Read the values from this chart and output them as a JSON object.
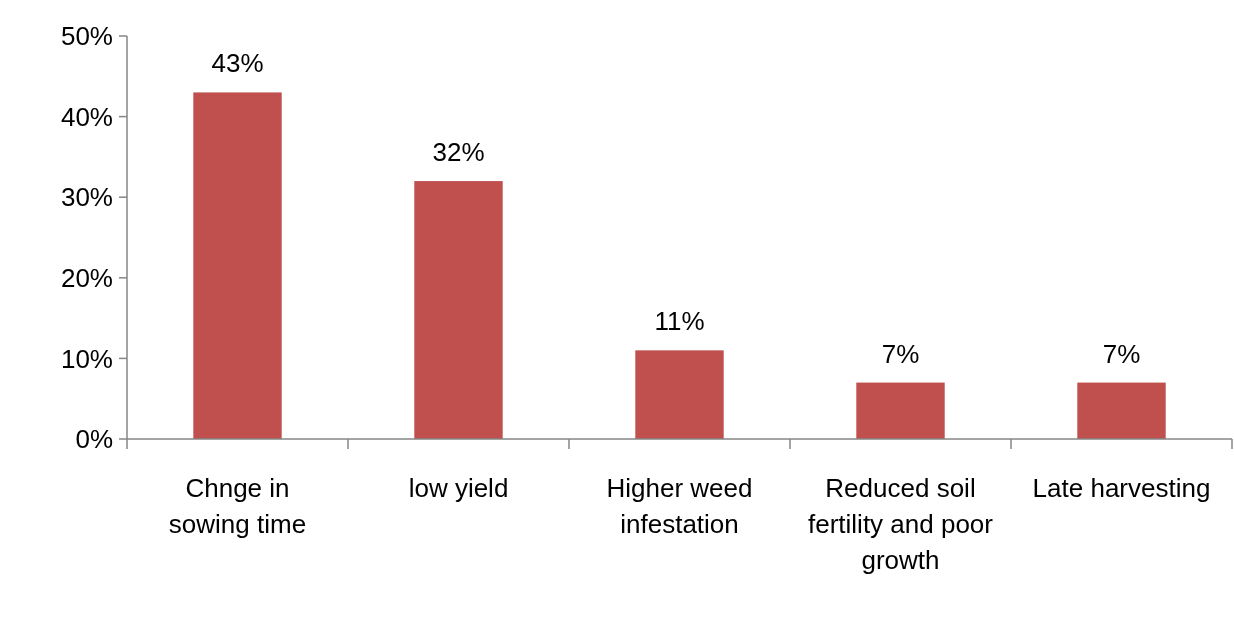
{
  "chart_data": {
    "type": "bar",
    "categories": [
      "Chnge in sowing time",
      "low yield",
      "Higher weed infestation",
      "Reduced soil fertility and poor growth",
      "Late harvesting"
    ],
    "values": [
      43,
      32,
      11,
      7,
      7
    ],
    "value_labels": [
      "43%",
      "32%",
      "11%",
      "7%",
      "7%"
    ],
    "color": "#c0504d",
    "ylim": [
      0,
      50
    ],
    "yticks": [
      {
        "value": 0,
        "label": "0%"
      },
      {
        "value": 10,
        "label": "10%"
      },
      {
        "value": 20,
        "label": "20%"
      },
      {
        "value": 30,
        "label": "30%"
      },
      {
        "value": 40,
        "label": "40%"
      },
      {
        "value": 50,
        "label": "50%"
      }
    ],
    "grid": false
  }
}
